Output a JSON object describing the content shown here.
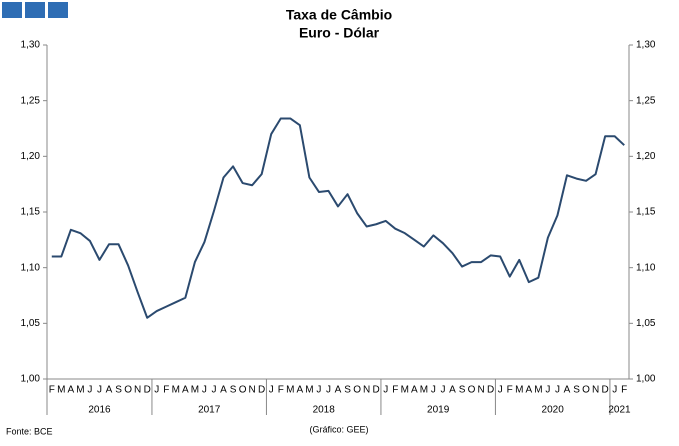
{
  "chart_data": {
    "type": "line",
    "title": "Taxa de Câmbio",
    "subtitle": "Euro - Dólar",
    "source": "Fonte: BCE",
    "credit": "(Gráfico: GEE)",
    "categories": [
      "F",
      "M",
      "A",
      "M",
      "J",
      "J",
      "A",
      "S",
      "O",
      "N",
      "D",
      "J",
      "F",
      "M",
      "A",
      "M",
      "J",
      "J",
      "A",
      "S",
      "O",
      "N",
      "D",
      "J",
      "F",
      "M",
      "A",
      "M",
      "J",
      "J",
      "A",
      "S",
      "O",
      "N",
      "D",
      "J",
      "F",
      "M",
      "A",
      "M",
      "J",
      "J",
      "A",
      "S",
      "O",
      "N",
      "D",
      "J",
      "F",
      "M",
      "A",
      "M",
      "J",
      "J",
      "A",
      "S",
      "O",
      "N",
      "D",
      "J",
      "F"
    ],
    "x_groups": [
      {
        "label": "2016",
        "count": 11
      },
      {
        "label": "2017",
        "count": 12
      },
      {
        "label": "2018",
        "count": 12
      },
      {
        "label": "2019",
        "count": 12
      },
      {
        "label": "2020",
        "count": 12
      },
      {
        "label": "2021",
        "count": 2
      }
    ],
    "series": [
      {
        "name": "Euro - Dólar",
        "color": "#2b4a6f",
        "values": [
          1.11,
          1.11,
          1.134,
          1.131,
          1.124,
          1.107,
          1.121,
          1.121,
          1.102,
          1.078,
          1.055,
          1.061,
          1.065,
          1.069,
          1.073,
          1.105,
          1.123,
          1.151,
          1.181,
          1.191,
          1.176,
          1.174,
          1.184,
          1.22,
          1.234,
          1.234,
          1.228,
          1.181,
          1.168,
          1.169,
          1.155,
          1.166,
          1.149,
          1.137,
          1.139,
          1.142,
          1.135,
          1.131,
          1.125,
          1.119,
          1.129,
          1.122,
          1.113,
          1.101,
          1.105,
          1.105,
          1.111,
          1.11,
          1.092,
          1.107,
          1.087,
          1.091,
          1.127,
          1.147,
          1.183,
          1.18,
          1.178,
          1.184,
          1.218,
          1.218,
          1.21
        ]
      }
    ],
    "ylim": [
      1.0,
      1.3
    ],
    "yticks": [
      {
        "value": 1.0,
        "label": "1,00"
      },
      {
        "value": 1.05,
        "label": "1,05"
      },
      {
        "value": 1.1,
        "label": "1,10"
      },
      {
        "value": 1.15,
        "label": "1,15"
      },
      {
        "value": 1.2,
        "label": "1,20"
      },
      {
        "value": 1.25,
        "label": "1,25"
      },
      {
        "value": 1.3,
        "label": "1,30"
      }
    ],
    "y2lim": [
      1.0,
      1.3
    ],
    "y2ticks": [
      {
        "value": 1.0,
        "label": "1,00"
      },
      {
        "value": 1.05,
        "label": "1,05"
      },
      {
        "value": 1.1,
        "label": "1,10"
      },
      {
        "value": 1.15,
        "label": "1,15"
      },
      {
        "value": 1.2,
        "label": "1,20"
      },
      {
        "value": 1.25,
        "label": "1,25"
      },
      {
        "value": 1.3,
        "label": "1,30"
      }
    ],
    "grid": false
  }
}
